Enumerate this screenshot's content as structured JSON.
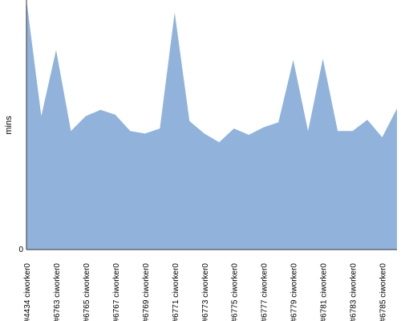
{
  "chart_data": {
    "type": "area",
    "title": "",
    "xlabel": "",
    "ylabel": "mins",
    "ylim": [
      0,
      100
    ],
    "y_tick_labels": [
      "0"
    ],
    "grid": false,
    "legend": "none",
    "fill_color": "#91b3db",
    "x": [
      "#4434 ciworker0",
      "",
      "#6763 ciworker0",
      "",
      "#6765 ciworker0",
      "",
      "#6767 ciworker0",
      "",
      "#6769 ciworker0",
      "",
      "#6771 ciworker0",
      "",
      "#6773 ciworker0",
      "",
      "#6775 ciworker0",
      "",
      "#6777 ciworker0",
      "",
      "#6779 ciworker0",
      "",
      "#6781 ciworker0",
      "",
      "#6783 ciworker0",
      "",
      "#6785 ciworker0",
      ""
    ],
    "series": [
      {
        "values": [
          100,
          53.5,
          80,
          47.5,
          53.5,
          56,
          54,
          47.5,
          46.5,
          48.5,
          95,
          51.5,
          46.5,
          43,
          48.5,
          46,
          49,
          51,
          76,
          47.5,
          76.5,
          47.5,
          47.5,
          52,
          45,
          56.5
        ]
      }
    ]
  }
}
